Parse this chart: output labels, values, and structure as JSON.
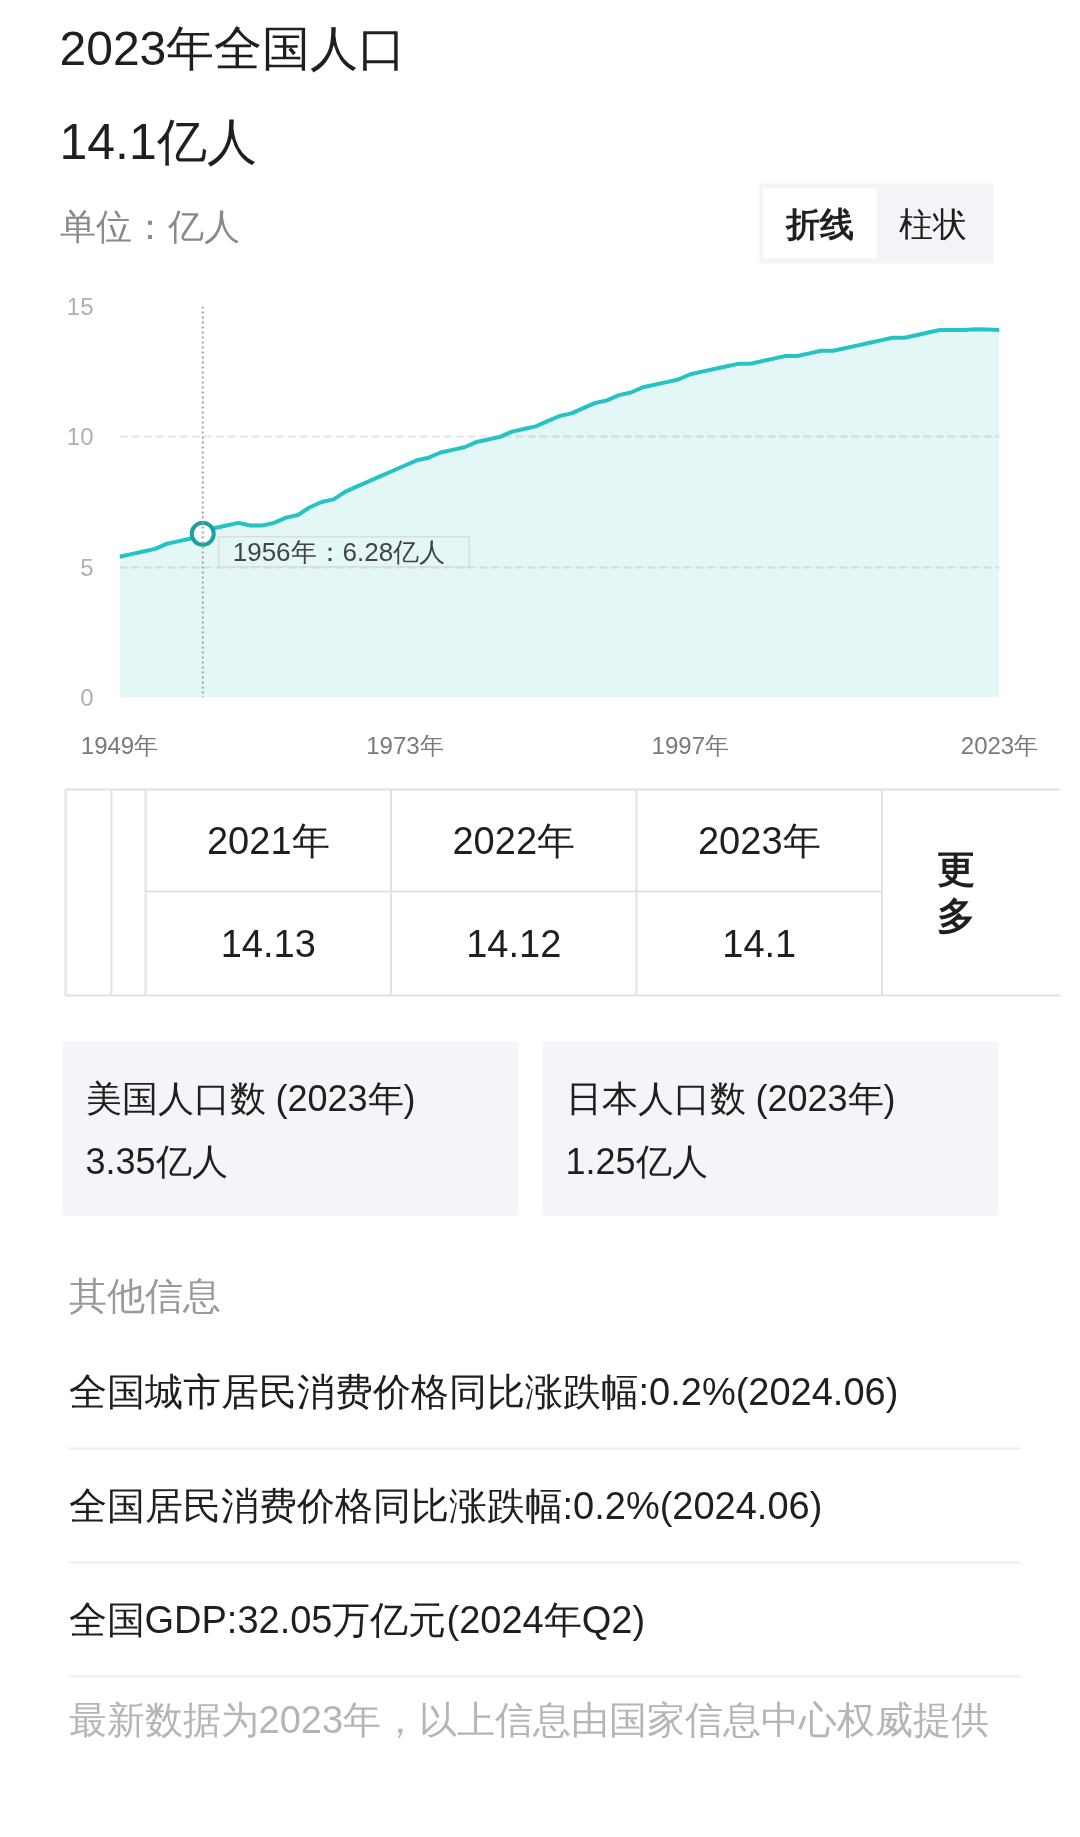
{
  "chart_data": [
    {
      "type": "area",
      "title": "2023年全国人口",
      "subtitle": "14.1亿人",
      "ylabel": "单位：亿人",
      "color": "#26c3c5",
      "x": [
        1949,
        1950,
        1951,
        1952,
        1953,
        1954,
        1955,
        1956,
        1957,
        1958,
        1959,
        1960,
        1961,
        1962,
        1963,
        1964,
        1965,
        1966,
        1967,
        1968,
        1969,
        1970,
        1971,
        1972,
        1973,
        1974,
        1975,
        1976,
        1977,
        1978,
        1979,
        1980,
        1981,
        1982,
        1983,
        1984,
        1985,
        1986,
        1987,
        1988,
        1989,
        1990,
        1991,
        1992,
        1993,
        1994,
        1995,
        1996,
        1997,
        1998,
        1999,
        2000,
        2001,
        2002,
        2003,
        2004,
        2005,
        2006,
        2007,
        2008,
        2009,
        2010,
        2011,
        2012,
        2013,
        2014,
        2015,
        2016,
        2017,
        2018,
        2019,
        2020,
        2021,
        2022,
        2023
      ],
      "values": [
        5.4,
        5.5,
        5.6,
        5.7,
        5.9,
        6.0,
        6.1,
        6.28,
        6.5,
        6.6,
        6.7,
        6.6,
        6.6,
        6.7,
        6.9,
        7.0,
        7.3,
        7.5,
        7.6,
        7.9,
        8.1,
        8.3,
        8.5,
        8.7,
        8.9,
        9.1,
        9.2,
        9.4,
        9.5,
        9.6,
        9.8,
        9.9,
        10.0,
        10.2,
        10.3,
        10.4,
        10.6,
        10.8,
        10.9,
        11.1,
        11.3,
        11.4,
        11.6,
        11.7,
        11.9,
        12.0,
        12.1,
        12.2,
        12.4,
        12.5,
        12.6,
        12.7,
        12.8,
        12.8,
        12.9,
        13.0,
        13.1,
        13.1,
        13.2,
        13.3,
        13.3,
        13.4,
        13.5,
        13.6,
        13.7,
        13.8,
        13.8,
        13.9,
        14.0,
        14.1,
        14.1,
        14.1,
        14.13,
        14.12,
        14.1
      ],
      "xlim": [
        1949,
        2023
      ],
      "ylim": [
        0,
        15
      ],
      "xticks": [
        {
          "value": 1949,
          "label": "1949年"
        },
        {
          "value": 1973,
          "label": "1973年"
        },
        {
          "value": 1997,
          "label": "1997年"
        },
        {
          "value": 2023,
          "label": "2023年"
        }
      ],
      "yticks": [
        0,
        5,
        10,
        15
      ],
      "grid": "y",
      "ref_lines": [
        {
          "axis": "x",
          "value": 1956,
          "line_style": "dotted",
          "color": "#a0a0a0"
        }
      ],
      "annotations": [
        {
          "text": "1956年：6.28亿人",
          "x": 1956,
          "y": 6.28
        },
        "折线",
        "柱状"
      ]
    },
    {
      "type": "other",
      "categories": [
        "2021年",
        "2022年",
        "2023年"
      ],
      "values": [
        14.13,
        14.12,
        14.1
      ],
      "data_labels": true,
      "annotations": [
        "更多"
      ]
    },
    {
      "type": "other",
      "annotations": [
        "美国人口数 (2023年)",
        "3.35亿人",
        "日本人口数 (2023年)",
        "1.25亿人"
      ]
    },
    {
      "type": "other",
      "title": "其他信息",
      "annotations": [
        "全国城市居民消费价格同比涨跌幅:0.2%(2024.06)",
        "全国居民消费价格同比涨跌幅:0.2%(2024.06)",
        "全国GDP:32.05万亿元(2024年Q2)",
        "最新数据为2023年，以上信息由国家信息中心权威提供"
      ]
    }
  ]
}
